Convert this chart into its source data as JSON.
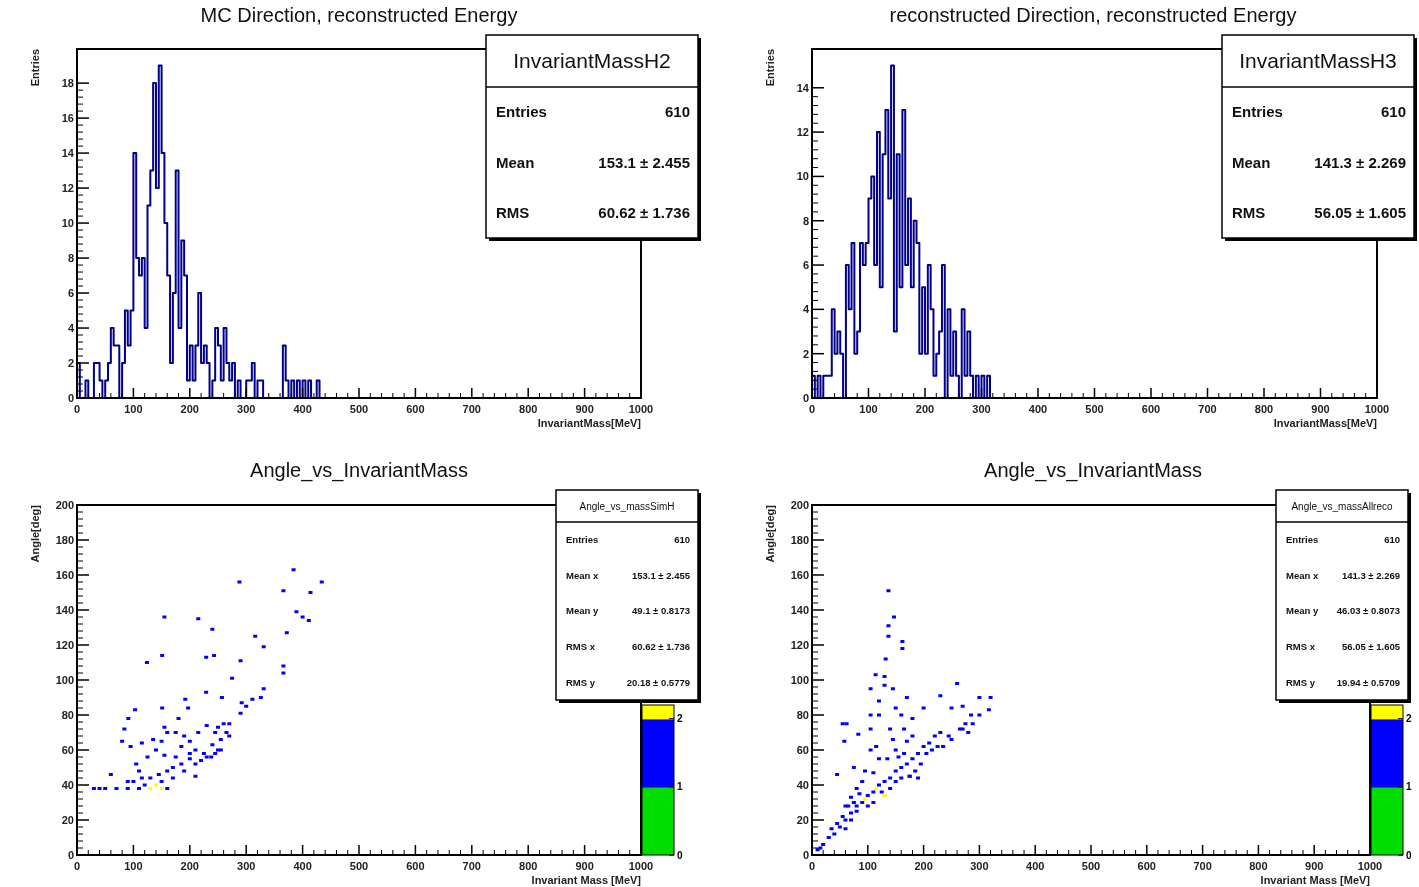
{
  "chart_data": [
    {
      "type": "histogram",
      "title": "MC Direction, reconstructed Energy",
      "xlabel": "InvariantMass[MeV]",
      "ylabel": "Entries",
      "color": "#00008b",
      "bins": [
        0,
        5,
        10,
        15,
        20,
        25,
        30,
        35,
        40,
        45,
        50,
        55,
        60,
        65,
        70,
        75,
        80,
        85,
        90,
        95,
        100,
        105,
        110,
        115,
        120,
        125,
        130,
        135,
        140,
        145,
        150,
        155,
        160,
        165,
        170,
        175,
        180,
        185,
        190,
        195,
        200,
        205,
        210,
        215,
        220,
        225,
        230,
        235,
        240,
        245,
        250,
        255,
        260,
        265,
        270,
        275,
        280,
        285,
        290,
        295,
        300,
        305,
        310,
        315,
        320,
        325,
        330,
        335,
        340,
        345,
        350,
        355,
        360,
        365,
        370,
        375,
        380,
        385,
        390,
        395,
        400,
        405,
        410,
        415,
        420,
        425,
        430,
        435,
        440,
        445,
        450,
        1000
      ],
      "values": [
        2,
        0,
        0,
        1,
        0,
        0,
        2,
        2,
        1,
        0,
        1,
        2,
        4,
        3,
        3,
        0,
        2,
        5,
        3,
        5,
        14,
        8,
        7,
        8,
        4,
        11,
        13,
        18,
        12,
        19,
        14,
        10,
        7,
        2,
        6,
        13,
        4,
        9,
        7,
        1,
        3,
        1,
        3,
        6,
        2,
        3,
        2,
        0,
        1,
        4,
        3,
        1,
        4,
        2,
        1,
        2,
        0,
        1,
        0,
        0,
        1,
        1,
        2,
        0,
        1,
        1,
        0,
        0,
        0,
        0,
        0,
        0,
        0,
        3,
        1,
        0,
        1,
        0,
        1,
        0,
        1,
        0,
        1,
        0,
        0,
        1,
        0,
        0,
        0,
        0,
        0
      ],
      "xlim": [
        0,
        1000
      ],
      "xticks": [
        0,
        100,
        200,
        300,
        400,
        500,
        600,
        700,
        800,
        900,
        1000
      ],
      "ylim": [
        0,
        19.95
      ],
      "yticks": [
        0,
        2,
        4,
        6,
        8,
        10,
        12,
        14,
        16,
        18
      ],
      "annotations": [
        "InvariantMassH2",
        "Entries",
        "610",
        "Mean",
        "153.1 ± 2.455",
        "RMS",
        "60.62 ± 1.736"
      ]
    },
    {
      "type": "histogram",
      "title": "reconstructed Direction, reconstructed Energy",
      "xlabel": "InvariantMass[MeV]",
      "ylabel": "Entries",
      "color": "#00008b",
      "bins": [
        0,
        5,
        10,
        15,
        20,
        25,
        30,
        35,
        40,
        45,
        50,
        55,
        60,
        65,
        70,
        75,
        80,
        85,
        90,
        95,
        100,
        105,
        110,
        115,
        120,
        125,
        130,
        135,
        140,
        145,
        150,
        155,
        160,
        165,
        170,
        175,
        180,
        185,
        190,
        195,
        200,
        205,
        210,
        215,
        220,
        225,
        230,
        235,
        240,
        245,
        250,
        255,
        260,
        265,
        270,
        275,
        280,
        285,
        290,
        295,
        300,
        305,
        310,
        315,
        320,
        1000
      ],
      "values": [
        1,
        0,
        1,
        0,
        1,
        1,
        1,
        4,
        2,
        3,
        2,
        0,
        6,
        4,
        7,
        2,
        3,
        7,
        6,
        7,
        9,
        10,
        6,
        12,
        5,
        11,
        13,
        9,
        15,
        3,
        11,
        5,
        13,
        6,
        9,
        5,
        8,
        7,
        2,
        5,
        2,
        6,
        4,
        1,
        2,
        3,
        6,
        0,
        4,
        1,
        3,
        1,
        0,
        4,
        1,
        3,
        1,
        0,
        1,
        0,
        1,
        0,
        1,
        0,
        0
      ],
      "xlim": [
        0,
        1000
      ],
      "xticks": [
        0,
        100,
        200,
        300,
        400,
        500,
        600,
        700,
        800,
        900,
        1000
      ],
      "ylim": [
        0,
        15.75
      ],
      "yticks": [
        0,
        2,
        4,
        6,
        8,
        10,
        12,
        14
      ],
      "annotations": [
        "InvariantMassH3",
        "Entries",
        "610",
        "Mean",
        "141.3 ± 2.269",
        "RMS",
        "56.05 ± 1.605"
      ]
    },
    {
      "type": "scatter",
      "title": "Angle_vs_InvariantMass",
      "xlabel": "Invariant Mass [MeV]",
      "ylabel": "Angle[deg]",
      "marker": "square",
      "series": [
        {
          "color": "#0000ff",
          "x": [
            288,
            384,
            434,
            366,
            414,
            389,
            400,
            411,
            372,
            316,
            331,
            240,
            215,
            155,
            151,
            124,
            229,
            243,
            290,
            366,
            366,
            275,
            331,
            326,
            257,
            229,
            192,
            197,
            311,
            300,
            290,
            292,
            103,
            91,
            84,
            80,
            151,
            155,
            160,
            175,
            180,
            190,
            200,
            215,
            230,
            245,
            250,
            260,
            270,
            265,
            255,
            250,
            240,
            225,
            210,
            200,
            185,
            170,
            160,
            145,
            130,
            115,
            100,
            90,
            60,
            40,
            30,
            50,
            70,
            90,
            110,
            160,
            120,
            150,
            170,
            190,
            210,
            230,
            255,
            270,
            140,
            155,
            125,
            105,
            110,
            95,
            115,
            135,
            150,
            185,
            200,
            175,
            210,
            220,
            238,
            245
          ],
          "values": [
            156,
            163,
            156,
            151,
            150,
            139,
            136,
            134,
            127,
            125,
            119,
            129,
            135,
            136,
            114,
            110,
            113,
            114,
            111,
            108,
            104,
            101,
            95,
            90,
            90,
            93,
            89,
            84,
            89,
            85,
            81,
            87,
            83,
            78,
            72,
            65,
            84,
            73,
            70,
            70,
            78,
            68,
            65,
            70,
            74,
            70,
            73,
            75,
            75,
            70,
            66,
            60,
            63,
            58,
            60,
            55,
            52,
            50,
            48,
            46,
            44,
            44,
            42,
            42,
            46,
            38,
            38,
            38,
            38,
            38,
            38,
            38,
            40,
            42,
            44,
            48,
            52,
            56,
            60,
            68,
            60,
            57,
            56,
            52,
            48,
            62,
            64,
            66,
            65,
            62,
            58,
            56,
            45,
            54,
            56,
            58
          ]
        },
        {
          "color": "#ffff00",
          "x": [
            130,
            150,
            140
          ],
          "values": [
            38,
            38,
            40
          ]
        }
      ],
      "xlim": [
        0,
        1000
      ],
      "xticks": [
        0,
        100,
        200,
        300,
        400,
        500,
        600,
        700,
        800,
        900,
        1000
      ],
      "ylim": [
        0,
        200
      ],
      "yticks": [
        0,
        20,
        40,
        60,
        80,
        100,
        120,
        140,
        160,
        180,
        200
      ],
      "clim": [
        0,
        2.2
      ],
      "cticks": [
        0,
        1,
        2
      ],
      "annotations": [
        "Angle_vs_massSimH",
        "Entries",
        "610",
        "Mean x",
        "153.1 ± 2.455",
        "Mean y",
        "49.1 ± 0.8173",
        "RMS x",
        "60.62 ± 1.736",
        "RMS y",
        "20.18 ± 0.5779"
      ]
    },
    {
      "type": "scatter",
      "title": "Angle_vs_InvariantMass",
      "xlabel": "Invariant Mass [MeV]",
      "ylabel": "Angle[deg]",
      "marker": "square",
      "series": [
        {
          "color": "#0000ff",
          "x": [
            137,
            147,
            137,
            137,
            162,
            162,
            132,
            114,
            130,
            105,
            130,
            145,
            170,
            200,
            120,
            105,
            120,
            150,
            160,
            180,
            55,
            62,
            58,
            83,
            105,
            140,
            165,
            145,
            180,
            170,
            260,
            230,
            250,
            270,
            300,
            320,
            317,
            300,
            285,
            275,
            288,
            265,
            280,
            245,
            230,
            220,
            210,
            200,
            190,
            180,
            170,
            160,
            150,
            140,
            130,
            120,
            110,
            100,
            90,
            80,
            70,
            60,
            50,
            40,
            30,
            20,
            10,
            15,
            35,
            45,
            55,
            65,
            75,
            85,
            175,
            185,
            195,
            205,
            215,
            235,
            250,
            270,
            225,
            160,
            150,
            140,
            125,
            110,
            100,
            70,
            80,
            60,
            120,
            135,
            150,
            110,
            95,
            90,
            70,
            60,
            45,
            75,
            80,
            105,
            115,
            155,
            165,
            175,
            190
          ],
          "values": [
            151,
            136,
            131,
            125,
            122,
            118,
            112,
            103,
            102,
            95,
            97,
            95,
            90,
            84,
            88,
            80,
            80,
            84,
            80,
            78,
            75,
            75,
            65,
            69,
            72,
            72,
            72,
            66,
            68,
            65,
            98,
            91,
            84,
            85,
            90,
            90,
            83,
            80,
            80,
            75,
            75,
            72,
            70,
            68,
            70,
            68,
            64,
            62,
            58,
            55,
            52,
            50,
            48,
            44,
            42,
            40,
            36,
            34,
            30,
            28,
            24,
            20,
            16,
            12,
            10,
            6,
            3,
            4,
            15,
            18,
            22,
            28,
            30,
            35,
            45,
            48,
            52,
            58,
            60,
            62,
            66,
            72,
            62,
            44,
            42,
            38,
            36,
            30,
            28,
            20,
            25,
            15,
            55,
            55,
            60,
            47,
            48,
            42,
            33,
            28,
            46,
            50,
            38,
            60,
            62,
            56,
            58,
            45,
            44
          ]
        },
        {
          "color": "#ffff00",
          "x": [
            95,
            115,
            130
          ],
          "values": [
            32,
            38,
            34
          ]
        }
      ],
      "xlim": [
        0,
        1000
      ],
      "xticks": [
        0,
        100,
        200,
        300,
        400,
        500,
        600,
        700,
        800,
        900,
        1000
      ],
      "ylim": [
        0,
        200
      ],
      "yticks": [
        0,
        20,
        40,
        60,
        80,
        100,
        120,
        140,
        160,
        180,
        200
      ],
      "clim": [
        0,
        2.2
      ],
      "cticks": [
        0,
        1,
        2
      ],
      "annotations": [
        "Angle_vs_massAllreco",
        "Entries",
        "610",
        "Mean x",
        "141.3 ± 2.269",
        "Mean y",
        "46.03 ± 0.8073",
        "RMS x",
        "56.05 ± 1.605",
        "RMS y",
        "19.94 ± 0.5709"
      ]
    }
  ]
}
